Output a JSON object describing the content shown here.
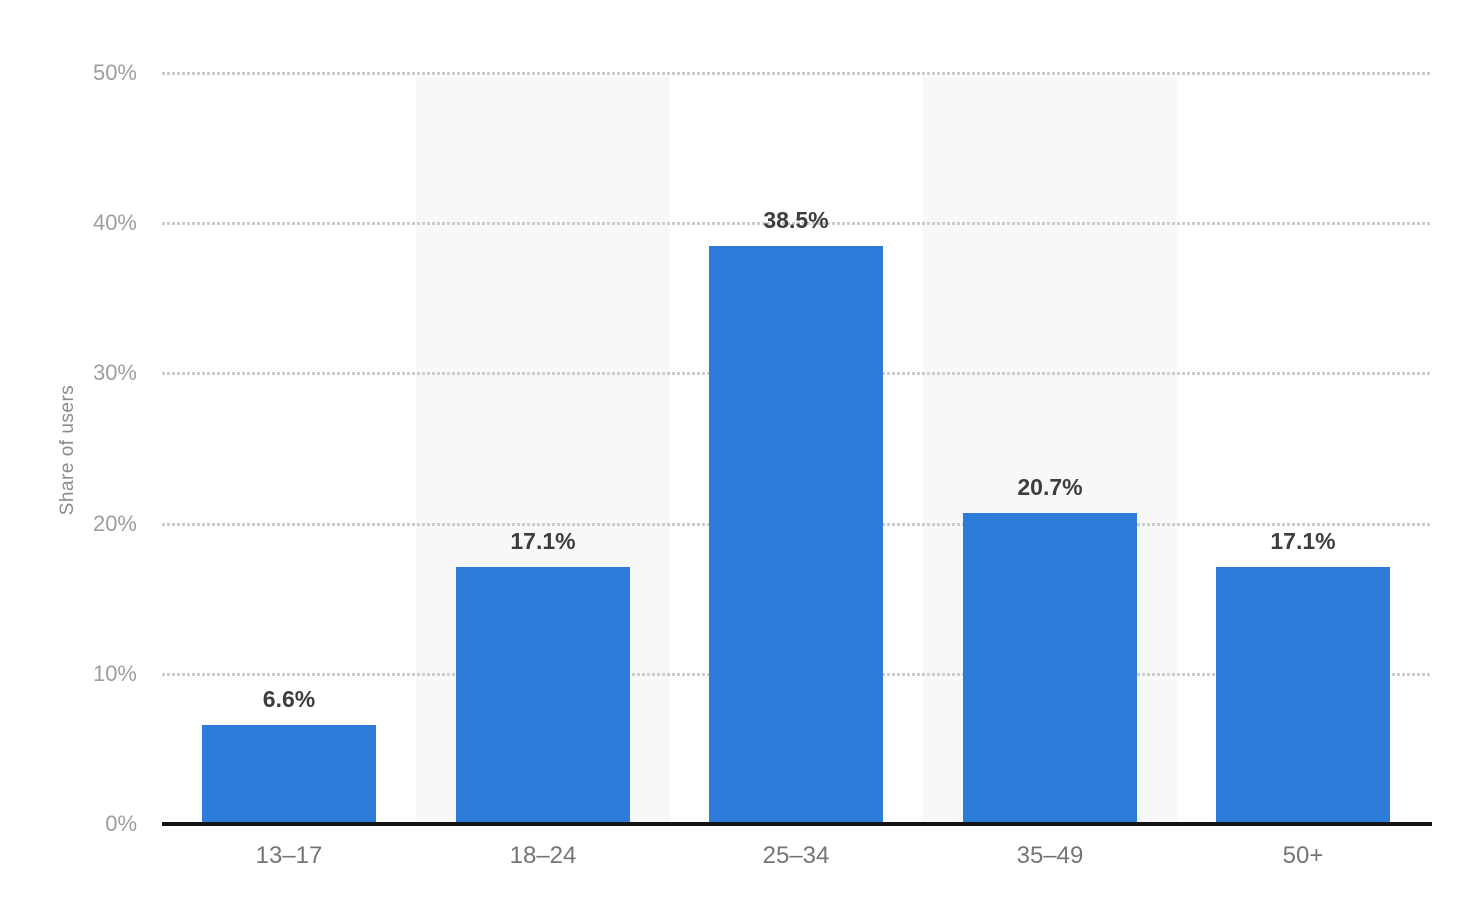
{
  "chart_data": {
    "type": "bar",
    "title": "",
    "xlabel": "",
    "ylabel": "Share of users",
    "categories": [
      "13–17",
      "18–24",
      "25–34",
      "35–49",
      "50+"
    ],
    "values": [
      6.6,
      17.1,
      38.5,
      20.7,
      17.1
    ],
    "value_labels": [
      "6.6%",
      "17.1%",
      "38.5%",
      "20.7%",
      "17.1%"
    ],
    "ylim": [
      0,
      50
    ],
    "ytick_labels": [
      "0%",
      "10%",
      "20%",
      "30%",
      "40%",
      "50%"
    ],
    "grid": "horizontal-dotted",
    "legend": "none",
    "band_behind_categories": [
      "18–24",
      "35–49"
    ],
    "colors": {
      "bar": "#2d7bd8",
      "band": "#f8f8f8",
      "gridline": "#cccccc",
      "axis_line": "#131313",
      "ytick_text": "#9e9e9e",
      "xtick_text": "#757575",
      "value_label_text": "#3d3d3d",
      "ylabel_text": "#8c8c8c"
    }
  }
}
